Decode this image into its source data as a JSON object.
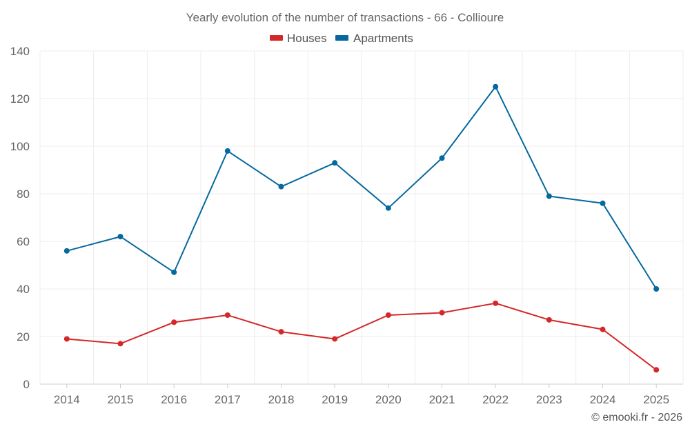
{
  "chart_data": {
    "type": "line",
    "title": "Yearly evolution of the number of transactions - 66 - Collioure",
    "categories": [
      "2014",
      "2015",
      "2016",
      "2017",
      "2018",
      "2019",
      "2020",
      "2021",
      "2022",
      "2023",
      "2024",
      "2025"
    ],
    "series": [
      {
        "name": "Houses",
        "color": "#d62728",
        "values": [
          19,
          17,
          26,
          29,
          22,
          19,
          29,
          30,
          34,
          27,
          23,
          6
        ]
      },
      {
        "name": "Apartments",
        "color": "#05689f",
        "values": [
          56,
          62,
          47,
          98,
          83,
          93,
          74,
          95,
          125,
          79,
          76,
          40
        ]
      }
    ],
    "ylim": [
      0,
      140
    ],
    "yticks": [
      0,
      20,
      40,
      60,
      80,
      100,
      120,
      140
    ],
    "xlabel": "",
    "ylabel": "",
    "legend_position": "top-center",
    "grid": true
  },
  "credit": "© emooki.fr - 2026"
}
